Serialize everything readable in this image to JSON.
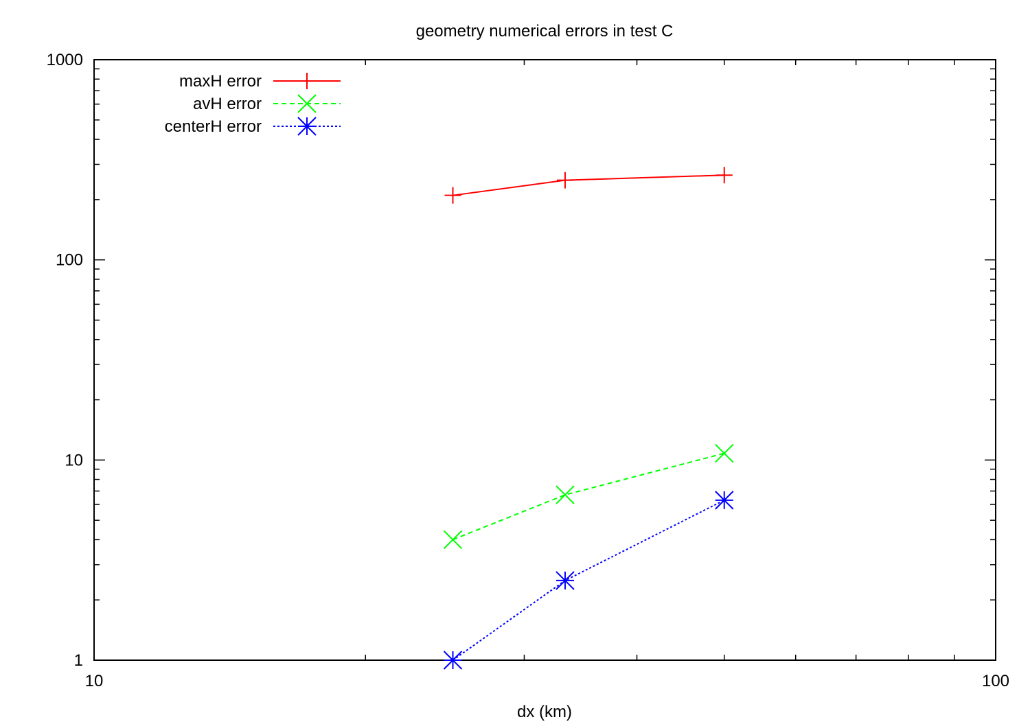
{
  "chart_data": {
    "type": "line",
    "title": "geometry   numerical errors in test C",
    "xlabel": "dx  (km)",
    "ylabel": "",
    "x_scale": "log",
    "y_scale": "log",
    "xlim": [
      10,
      100
    ],
    "ylim": [
      1,
      1000
    ],
    "x_major_ticks": [
      10,
      100
    ],
    "x_tick_labels": [
      "10",
      "100"
    ],
    "y_major_ticks": [
      1,
      10,
      100,
      1000
    ],
    "y_tick_labels": [
      "1",
      "10",
      "100",
      "1000"
    ],
    "grid": false,
    "legend_position": "top-left",
    "series": [
      {
        "name": "maxH error",
        "color": "#ff0000",
        "line_style": "solid",
        "marker": "plus",
        "x": [
          25,
          33.3,
          50
        ],
        "y": [
          210,
          250,
          265
        ]
      },
      {
        "name": "avH error",
        "color": "#00ff00",
        "line_style": "dashed",
        "marker": "cross",
        "x": [
          25,
          33.3,
          50
        ],
        "y": [
          4.0,
          6.7,
          10.8
        ]
      },
      {
        "name": "centerH error",
        "color": "#0000ff",
        "line_style": "dotted",
        "marker": "star",
        "x": [
          25,
          33.3,
          50
        ],
        "y": [
          1.0,
          2.5,
          6.3
        ]
      }
    ]
  }
}
